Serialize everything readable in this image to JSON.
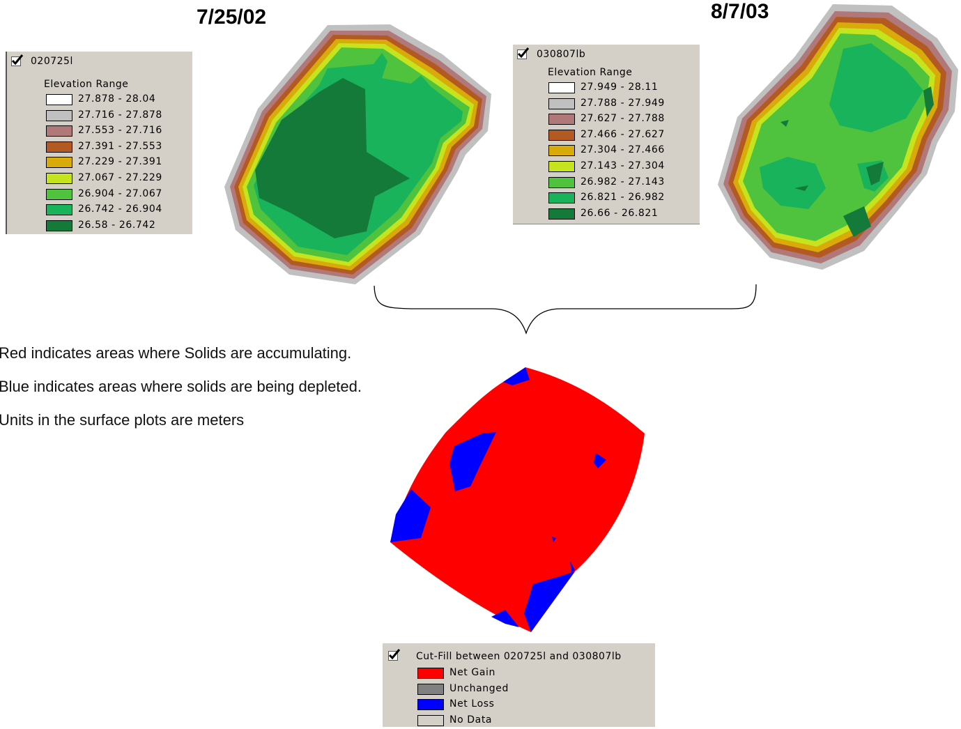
{
  "dates": {
    "left": "7/25/02",
    "right": "8/7/03"
  },
  "legend_2002": {
    "layer": "020725l",
    "subtitle": "Elevation Range",
    "items": [
      {
        "range": "27.878 - 28.04",
        "color": "#ffffff"
      },
      {
        "range": "27.716 - 27.878",
        "color": "#c0c0c0"
      },
      {
        "range": "27.553 - 27.716",
        "color": "#b07878"
      },
      {
        "range": "27.391 - 27.553",
        "color": "#b25a22"
      },
      {
        "range": "27.229 - 27.391",
        "color": "#d8aa0a"
      },
      {
        "range": "27.067 - 27.229",
        "color": "#c6e41e"
      },
      {
        "range": "26.904 - 27.067",
        "color": "#4fc33e"
      },
      {
        "range": "26.742 - 26.904",
        "color": "#18b35a"
      },
      {
        "range": "26.58 - 26.742",
        "color": "#137a3a"
      }
    ]
  },
  "legend_2003": {
    "layer": "030807lb",
    "subtitle": "Elevation Range",
    "items": [
      {
        "range": "27.949 - 28.11",
        "color": "#ffffff"
      },
      {
        "range": "27.788 - 27.949",
        "color": "#c0c0c0"
      },
      {
        "range": "27.627 - 27.788",
        "color": "#b07878"
      },
      {
        "range": "27.466 - 27.627",
        "color": "#b25a22"
      },
      {
        "range": "27.304 - 27.466",
        "color": "#d8aa0a"
      },
      {
        "range": "27.143 - 27.304",
        "color": "#c6e41e"
      },
      {
        "range": "26.982 - 27.143",
        "color": "#4fc33e"
      },
      {
        "range": "26.821 - 26.982",
        "color": "#18b35a"
      },
      {
        "range": "26.66 - 26.821",
        "color": "#137a3a"
      }
    ]
  },
  "captions": [
    "Red indicates areas where Solids are accumulating.",
    "Blue indicates areas where solids are being depleted.",
    "Units in the surface plots are meters"
  ],
  "cutfill_legend": {
    "layer": "Cut-Fill between 020725l and 030807lb",
    "items": [
      {
        "label": "Net Gain",
        "color": "#ff0000"
      },
      {
        "label": "Unchanged",
        "color": "#808080"
      },
      {
        "label": "Net Loss",
        "color": "#0000ff"
      },
      {
        "label": "No Data",
        "color": "#d4d0c8"
      }
    ]
  }
}
